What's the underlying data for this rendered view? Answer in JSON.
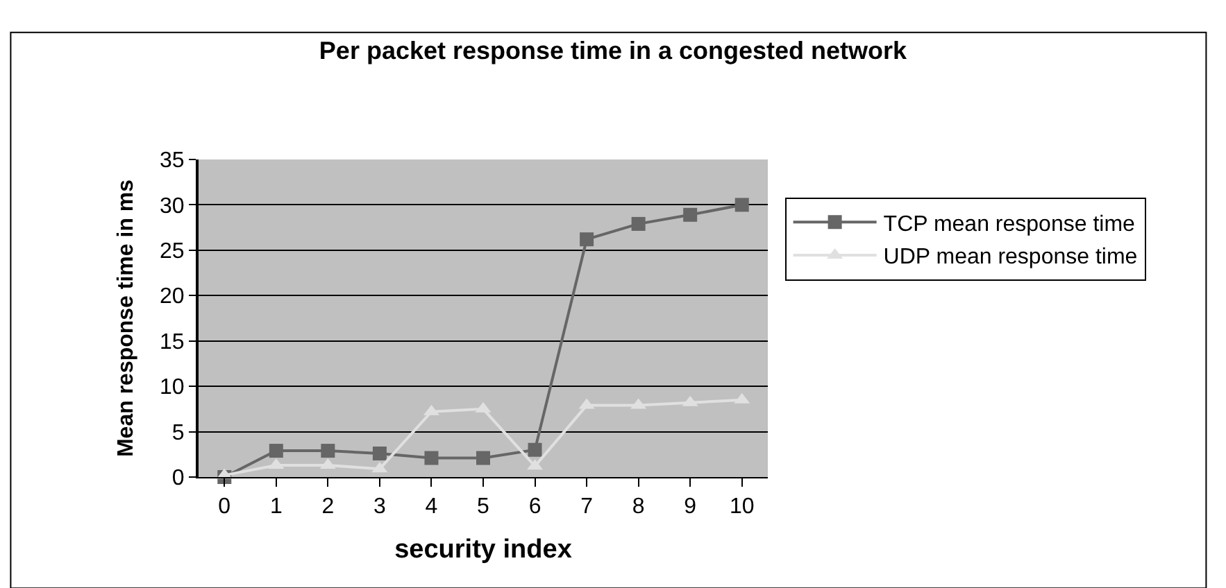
{
  "chart_data": {
    "type": "line",
    "title": "Per packet response time in a congested network",
    "xlabel": "security index",
    "ylabel": "Mean response time in ms",
    "categories": [
      "0",
      "1",
      "2",
      "3",
      "4",
      "5",
      "6",
      "7",
      "8",
      "9",
      "10"
    ],
    "series": [
      {
        "name": "TCP mean response time",
        "color": "#666666",
        "marker": "square",
        "values": [
          0,
          2.9,
          2.9,
          2.6,
          2.1,
          2.1,
          3.0,
          26.2,
          27.9,
          28.9,
          30
        ]
      },
      {
        "name": "UDP mean response time",
        "color": "#e0e0e0",
        "marker": "triangle",
        "values": [
          0.2,
          1.3,
          1.3,
          0.9,
          7.2,
          7.5,
          1.2,
          7.9,
          7.9,
          8.2,
          8.5
        ]
      }
    ],
    "ylim": [
      0,
      35
    ],
    "yticks": [
      0,
      5,
      10,
      15,
      20,
      25,
      30,
      35
    ],
    "grid": "y",
    "legend": "right"
  }
}
